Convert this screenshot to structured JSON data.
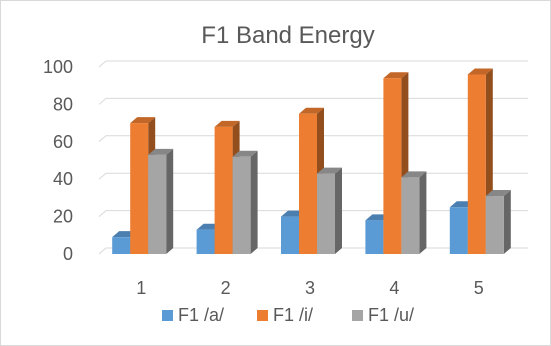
{
  "chart_data": {
    "type": "bar",
    "title": "F1 Band Energy",
    "xlabel": "",
    "ylabel": "",
    "categories": [
      "1",
      "2",
      "3",
      "4",
      "5"
    ],
    "series": [
      {
        "name": "F1 /a/",
        "values": [
          9,
          13,
          20,
          18,
          25
        ],
        "color": "#5b9bd5"
      },
      {
        "name": "F1 /i/",
        "values": [
          70,
          68,
          75,
          94,
          96
        ],
        "color": "#ed7d31"
      },
      {
        "name": "F1 /u/",
        "values": [
          53,
          52,
          43,
          41,
          31
        ],
        "color": "#a5a5a5"
      }
    ],
    "ylim": [
      0,
      100
    ],
    "yticks": [
      "0",
      "20",
      "40",
      "60",
      "80",
      "100"
    ],
    "grid": true,
    "style": "3d-clustered",
    "legend_position": "bottom"
  }
}
